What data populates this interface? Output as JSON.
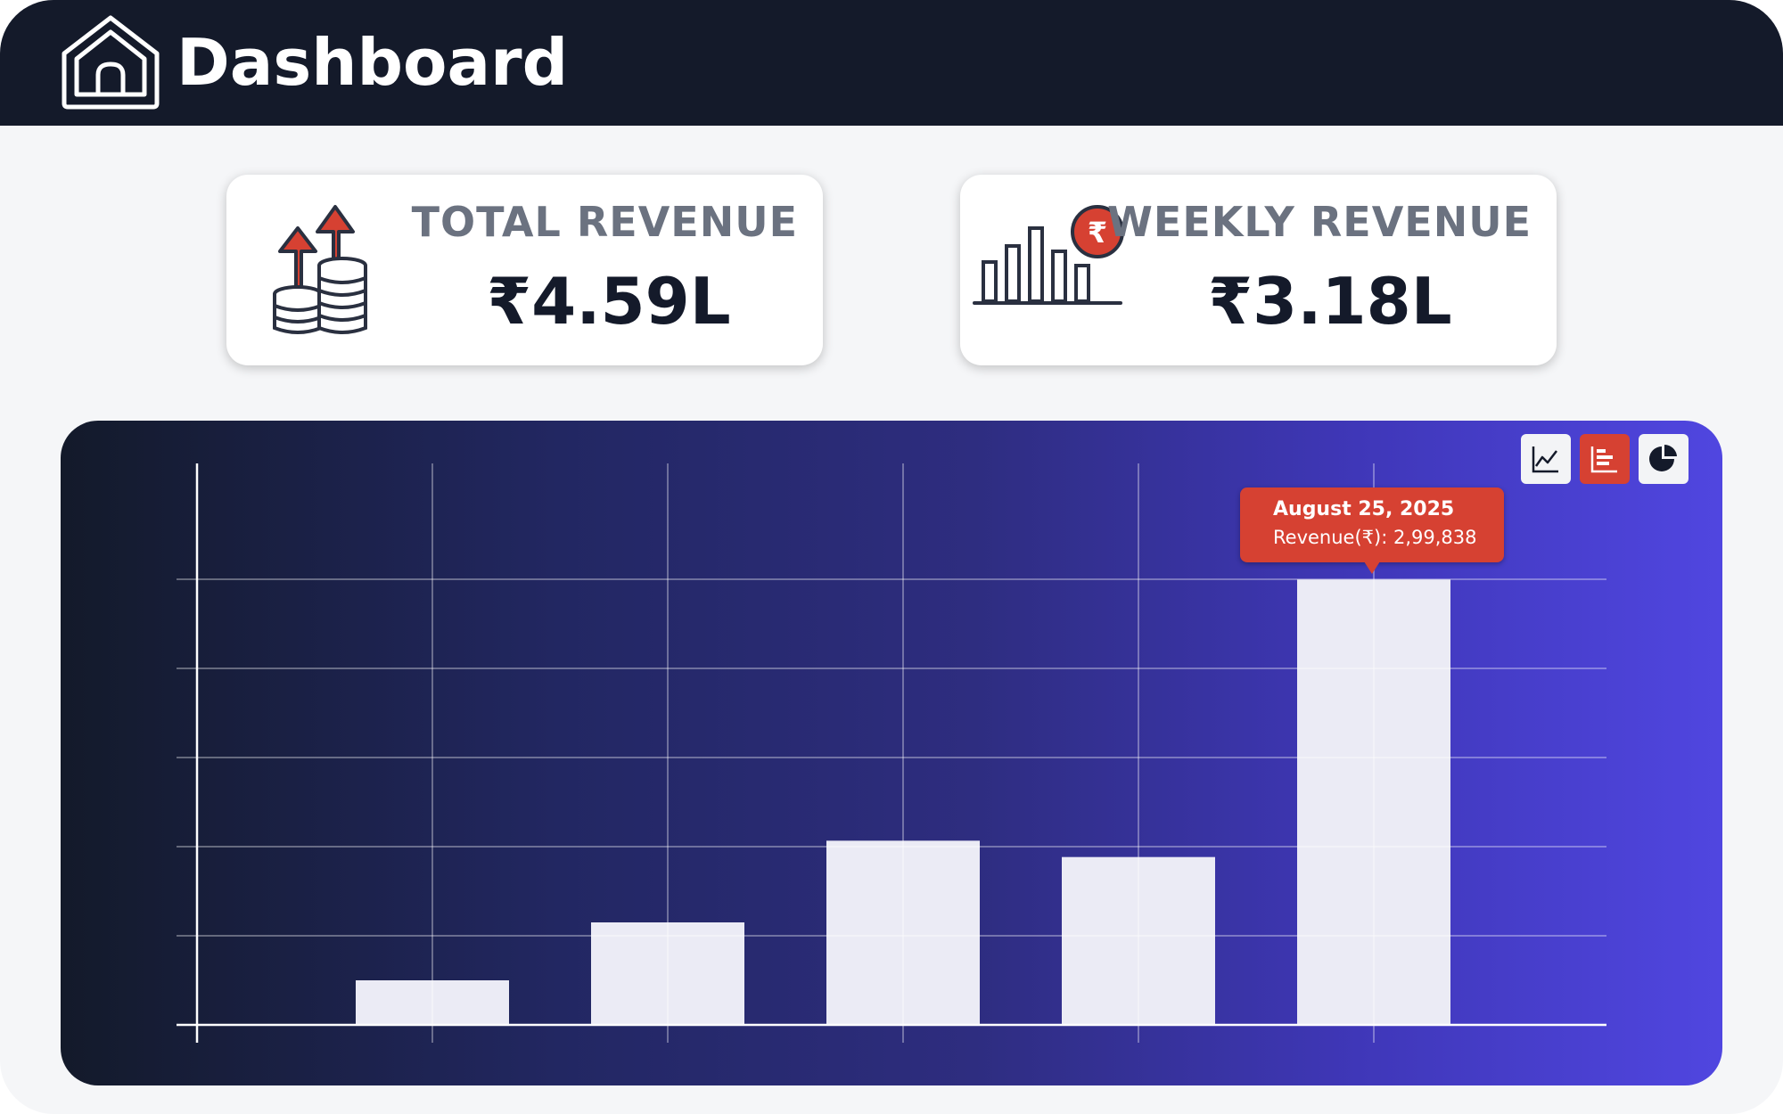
{
  "header": {
    "title": "Dashboard",
    "icon": "home-icon",
    "background": "#141a2a"
  },
  "cards": {
    "total": {
      "label": "TOTAL REVENUE",
      "value": "₹4.59L",
      "icon": "revenue-growth-icon"
    },
    "weekly": {
      "label": "WEEKLY REVENUE",
      "value": "₹3.18L",
      "icon": "bar-chart-rupee-icon"
    }
  },
  "chart_toolbar": {
    "options": [
      "line-chart-icon",
      "bar-chart-icon",
      "pie-chart-icon"
    ],
    "selected": "bar-chart-icon",
    "accent": "#d64132"
  },
  "tooltip": {
    "date": "August 25, 2025",
    "value_text": "Revenue(₹): 2,99,838"
  },
  "chart_data": {
    "type": "bar",
    "categories": [
      "",
      "",
      "",
      "",
      ""
    ],
    "values": [
      30000,
      69000,
      124000,
      113000,
      299838
    ],
    "ylim": [
      0,
      360000
    ],
    "y_gridlines": [
      60000,
      120000,
      180000,
      240000,
      300000
    ],
    "grid": true,
    "highlighted_index": 4,
    "bar_color": "#ebebf5",
    "title": "",
    "xlabel": "",
    "ylabel": ""
  }
}
